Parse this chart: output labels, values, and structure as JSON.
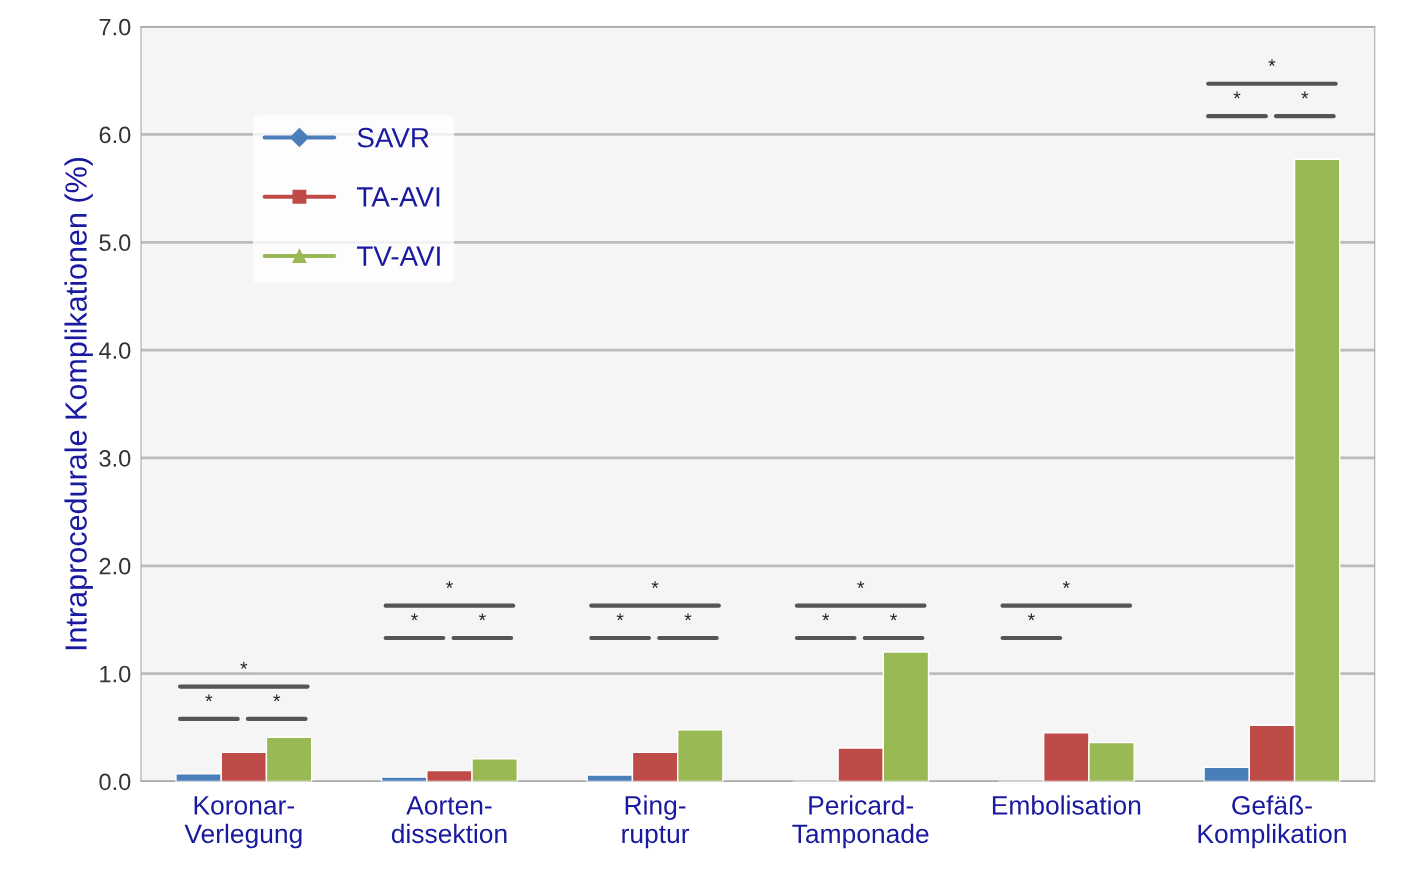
{
  "chart_data": {
    "type": "bar",
    "ylabel": "Intraprocedurale Komplikationen (%)",
    "categories": [
      "Koronar-\nVerlegung",
      "Aorten-\ndissektion",
      "Ring-\nruptur",
      "Pericard-\nTamponade",
      "Embolisation",
      "Gefäß-\nKomplikation"
    ],
    "series": [
      {
        "name": "SAVR",
        "color": "#4a7ebb",
        "marker": "diamond",
        "values": [
          0.07,
          0.04,
          0.06,
          null,
          null,
          0.13
        ]
      },
      {
        "name": "TA-AVI",
        "color": "#be4b48",
        "marker": "square",
        "values": [
          0.27,
          0.1,
          0.27,
          0.31,
          0.45,
          0.52
        ]
      },
      {
        "name": "TV-AVI",
        "color": "#98b954",
        "marker": "triangle",
        "values": [
          0.41,
          0.21,
          0.48,
          1.2,
          0.36,
          5.77
        ]
      }
    ],
    "ylim": [
      0,
      7
    ],
    "yticks": [
      {
        "value": 0,
        "label": "0.0"
      },
      {
        "value": 1,
        "label": "1.0"
      },
      {
        "value": 2,
        "label": "2.0"
      },
      {
        "value": 3,
        "label": "3.0"
      },
      {
        "value": 4,
        "label": "4.0"
      },
      {
        "value": 5,
        "label": "5.0"
      },
      {
        "value": 6,
        "label": "6.0"
      },
      {
        "value": 7,
        "label": "7.0"
      }
    ],
    "grid": "y",
    "legend": "top left",
    "annotations": [
      "*",
      "*",
      "*",
      "*",
      "*",
      "*",
      "*",
      "*",
      "*",
      "*",
      "*",
      "*",
      "*",
      "*",
      "*",
      "*",
      "*"
    ]
  }
}
